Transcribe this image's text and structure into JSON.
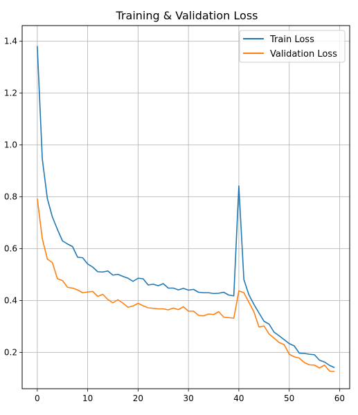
{
  "chart_data": {
    "type": "line",
    "title": "Training & Validation Loss",
    "xlabel": "",
    "ylabel": "",
    "xlim": [
      -3,
      62
    ],
    "ylim": [
      0.06,
      1.46
    ],
    "xticks": [
      0,
      10,
      20,
      30,
      40,
      50,
      60
    ],
    "yticks": [
      0.2,
      0.4,
      0.6,
      0.8,
      1.0,
      1.2,
      1.4
    ],
    "xtick_labels": [
      "0",
      "10",
      "20",
      "30",
      "40",
      "50",
      "60"
    ],
    "ytick_labels": [
      "0.2",
      "0.4",
      "0.6",
      "0.8",
      "1.0",
      "1.2",
      "1.4"
    ],
    "grid": true,
    "legend_position": "top-right",
    "x": [
      0,
      1,
      2,
      3,
      4,
      5,
      6,
      7,
      8,
      9,
      10,
      11,
      12,
      13,
      14,
      15,
      16,
      17,
      18,
      19,
      20,
      21,
      22,
      23,
      24,
      25,
      26,
      27,
      28,
      29,
      30,
      31,
      32,
      33,
      34,
      35,
      36,
      37,
      38,
      39,
      40,
      41,
      42,
      43,
      44,
      45,
      46,
      47,
      48,
      49,
      50,
      51,
      52,
      53,
      54,
      55,
      56,
      57,
      58,
      59
    ],
    "series": [
      {
        "name": "Train Loss",
        "color": "#1f77b4",
        "values": [
          1.381,
          0.945,
          0.793,
          0.722,
          0.674,
          0.63,
          0.618,
          0.608,
          0.567,
          0.565,
          0.541,
          0.529,
          0.511,
          0.51,
          0.514,
          0.498,
          0.501,
          0.493,
          0.486,
          0.474,
          0.486,
          0.484,
          0.46,
          0.463,
          0.457,
          0.465,
          0.448,
          0.448,
          0.441,
          0.447,
          0.44,
          0.443,
          0.432,
          0.43,
          0.43,
          0.427,
          0.428,
          0.432,
          0.421,
          0.418,
          0.842,
          0.481,
          0.422,
          0.385,
          0.352,
          0.32,
          0.309,
          0.278,
          0.264,
          0.249,
          0.234,
          0.225,
          0.197,
          0.196,
          0.193,
          0.191,
          0.17,
          0.163,
          0.15,
          0.141
        ]
      },
      {
        "name": "Validation Loss",
        "color": "#ff7f0e",
        "values": [
          0.793,
          0.638,
          0.56,
          0.546,
          0.484,
          0.477,
          0.451,
          0.448,
          0.441,
          0.43,
          0.433,
          0.435,
          0.416,
          0.424,
          0.404,
          0.391,
          0.403,
          0.39,
          0.374,
          0.379,
          0.389,
          0.38,
          0.372,
          0.37,
          0.368,
          0.368,
          0.364,
          0.371,
          0.365,
          0.376,
          0.359,
          0.359,
          0.343,
          0.341,
          0.348,
          0.346,
          0.357,
          0.336,
          0.334,
          0.332,
          0.437,
          0.43,
          0.393,
          0.356,
          0.298,
          0.302,
          0.271,
          0.255,
          0.238,
          0.23,
          0.193,
          0.183,
          0.178,
          0.161,
          0.152,
          0.151,
          0.14,
          0.151,
          0.128,
          0.126
        ]
      }
    ]
  }
}
